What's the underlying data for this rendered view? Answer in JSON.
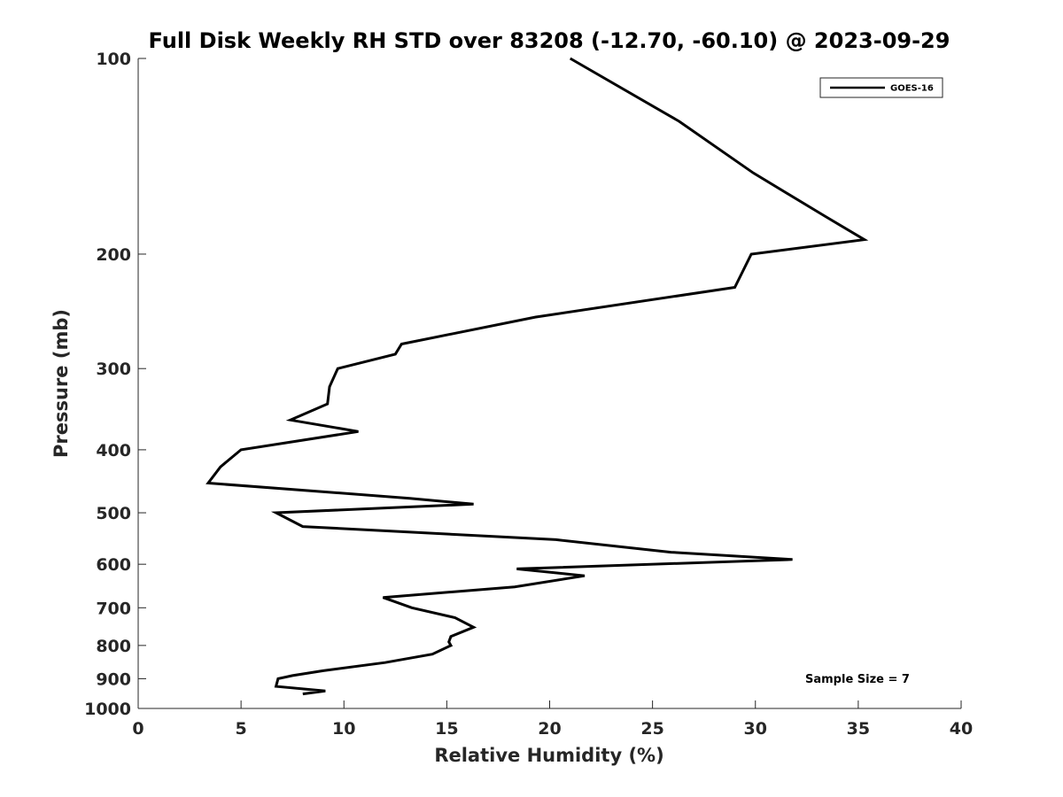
{
  "chart_data": {
    "type": "line",
    "title": "Full Disk Weekly RH STD over 83208 (-12.70, -60.10) @ 2023-09-29",
    "xlabel": "Relative Humidity (%)",
    "ylabel": "Pressure (mb)",
    "xlim": [
      0,
      40
    ],
    "ylim": [
      100,
      1000
    ],
    "yscale": "log",
    "yreversed": true,
    "xticks": [
      "0",
      "5",
      "10",
      "15",
      "20",
      "25",
      "30",
      "35",
      "40"
    ],
    "yticks": [
      "100",
      "200",
      "300",
      "400",
      "500",
      "600",
      "700",
      "800",
      "900",
      "1000"
    ],
    "grid": false,
    "legend_position": "top-right",
    "series": [
      {
        "name": "GOES-16",
        "color": "#000000",
        "points": [
          [
            21.0,
            100
          ],
          [
            26.3,
            125
          ],
          [
            29.9,
            150
          ],
          [
            33.4,
            175
          ],
          [
            35.3,
            190
          ],
          [
            29.8,
            200
          ],
          [
            29.0,
            225
          ],
          [
            19.3,
            250
          ],
          [
            12.8,
            275
          ],
          [
            12.5,
            285
          ],
          [
            9.7,
            300
          ],
          [
            9.3,
            320
          ],
          [
            9.2,
            340
          ],
          [
            7.4,
            360
          ],
          [
            10.7,
            375
          ],
          [
            5.0,
            400
          ],
          [
            4.0,
            425
          ],
          [
            3.4,
            450
          ],
          [
            13.2,
            475
          ],
          [
            16.3,
            485
          ],
          [
            6.7,
            500
          ],
          [
            8.0,
            525
          ],
          [
            20.3,
            550
          ],
          [
            25.9,
            575
          ],
          [
            31.8,
            590
          ],
          [
            18.4,
            610
          ],
          [
            21.7,
            625
          ],
          [
            18.3,
            650
          ],
          [
            11.9,
            675
          ],
          [
            13.3,
            700
          ],
          [
            15.4,
            725
          ],
          [
            16.3,
            750
          ],
          [
            15.2,
            775
          ],
          [
            15.1,
            790
          ],
          [
            15.2,
            800
          ],
          [
            14.3,
            825
          ],
          [
            12.0,
            850
          ],
          [
            9.0,
            875
          ],
          [
            7.5,
            890
          ],
          [
            6.8,
            900
          ],
          [
            6.7,
            925
          ],
          [
            9.1,
            940
          ],
          [
            8.0,
            950
          ]
        ]
      }
    ],
    "annotations": [
      "Sample Size = 7"
    ]
  }
}
